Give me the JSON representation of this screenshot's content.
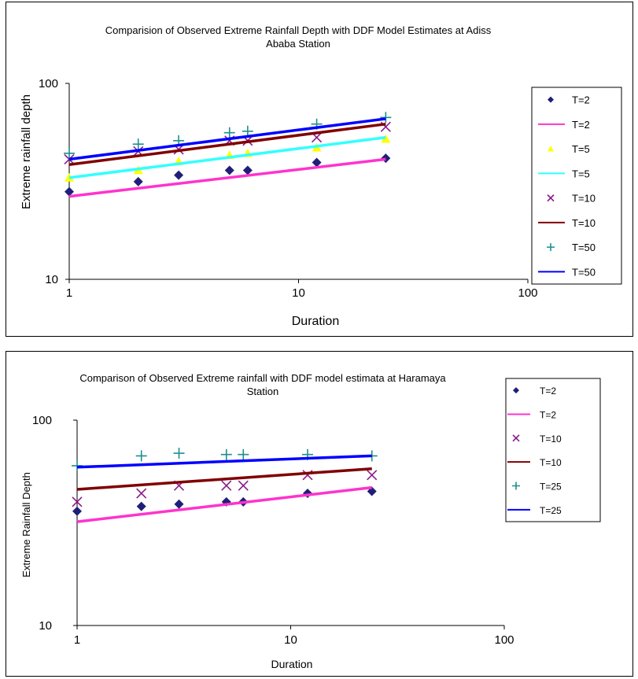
{
  "chart_data": [
    {
      "type": "scatter",
      "title_lines": [
        "Comparision of Observed Extreme Rainfall Depth with DDF Model Estimates at Adiss",
        "Ababa Station"
      ],
      "xlabel": "Duration",
      "ylabel": "Extreme rainfall depth",
      "x_scale": "log",
      "y_scale": "log",
      "xlim": [
        1,
        100
      ],
      "ylim": [
        10,
        100
      ],
      "x_ticks": [
        "1",
        "10",
        "100"
      ],
      "y_ticks": [
        "10",
        "100"
      ],
      "grid": false,
      "legend_position": "right",
      "series": [
        {
          "name": "T=2",
          "kind": "marker",
          "marker": "diamond",
          "color": "#1f1f7a",
          "x": [
            1,
            2,
            3,
            5,
            6,
            12,
            24
          ],
          "y": [
            28,
            31.5,
            34,
            36,
            36,
            39.5,
            41.5
          ]
        },
        {
          "name": "T=2",
          "kind": "line",
          "color": "#ff33cc",
          "x": [
            1,
            24
          ],
          "y": [
            26.5,
            41
          ]
        },
        {
          "name": "T=5",
          "kind": "marker",
          "marker": "triangle",
          "color": "#ffff00",
          "x": [
            1,
            2,
            3,
            5,
            6,
            12,
            24
          ],
          "y": [
            33,
            36,
            40,
            43,
            44,
            47,
            52
          ]
        },
        {
          "name": "T=5",
          "kind": "line",
          "color": "#33ffff",
          "x": [
            1,
            24
          ],
          "y": [
            33,
            53
          ]
        },
        {
          "name": "T=10",
          "kind": "marker",
          "marker": "x",
          "color": "#8b1a8b",
          "x": [
            1,
            2,
            3,
            5,
            6,
            12,
            24
          ],
          "y": [
            41,
            45,
            46,
            51,
            51,
            53,
            60
          ]
        },
        {
          "name": "T=10",
          "kind": "line",
          "color": "#800000",
          "x": [
            1,
            24
          ],
          "y": [
            38.5,
            62
          ]
        },
        {
          "name": "T=50",
          "kind": "marker",
          "marker": "plus",
          "color": "#1f8f8f",
          "x": [
            1,
            2,
            3,
            5,
            6,
            12,
            24
          ],
          "y": [
            44,
            49,
            51,
            56,
            57,
            62,
            67
          ]
        },
        {
          "name": "T=50",
          "kind": "line",
          "color": "#0000ff",
          "x": [
            1,
            24
          ],
          "y": [
            41,
            66
          ]
        }
      ]
    },
    {
      "type": "scatter",
      "title_lines": [
        "Comparison of Observed Extreme rainfall with DDF model estimata at Haramaya",
        "Station"
      ],
      "xlabel": "Duration",
      "ylabel": "Extreme Rainfall Depth",
      "x_scale": "log",
      "y_scale": "log",
      "xlim": [
        1,
        100
      ],
      "ylim": [
        10,
        100
      ],
      "x_ticks": [
        "1",
        "10",
        "100"
      ],
      "y_ticks": [
        "10",
        "100"
      ],
      "grid": false,
      "legend_position": "top-right",
      "series": [
        {
          "name": "T=2",
          "kind": "marker",
          "marker": "diamond",
          "color": "#1f1f7a",
          "x": [
            1,
            2,
            3,
            5,
            6,
            12,
            24
          ],
          "y": [
            36,
            38,
            39,
            40,
            40,
            44,
            45
          ]
        },
        {
          "name": "T=2",
          "kind": "line",
          "color": "#ff33cc",
          "x": [
            1,
            24
          ],
          "y": [
            32,
            47
          ]
        },
        {
          "name": "T=10",
          "kind": "marker",
          "marker": "x",
          "color": "#8b1a8b",
          "x": [
            1,
            2,
            3,
            5,
            6,
            12,
            24
          ],
          "y": [
            40,
            44,
            48,
            48,
            48,
            54,
            54
          ]
        },
        {
          "name": "T=10",
          "kind": "line",
          "color": "#800000",
          "x": [
            1,
            24
          ],
          "y": [
            46,
            58
          ]
        },
        {
          "name": "T=25",
          "kind": "marker",
          "marker": "plus",
          "color": "#1f8f8f",
          "x": [
            1,
            2,
            3,
            5,
            6,
            12,
            24
          ],
          "y": [
            60,
            67,
            69,
            68,
            68,
            68,
            67
          ]
        },
        {
          "name": "T=25",
          "kind": "line",
          "color": "#0000ff",
          "x": [
            1,
            24
          ],
          "y": [
            59,
            67
          ]
        }
      ]
    }
  ]
}
